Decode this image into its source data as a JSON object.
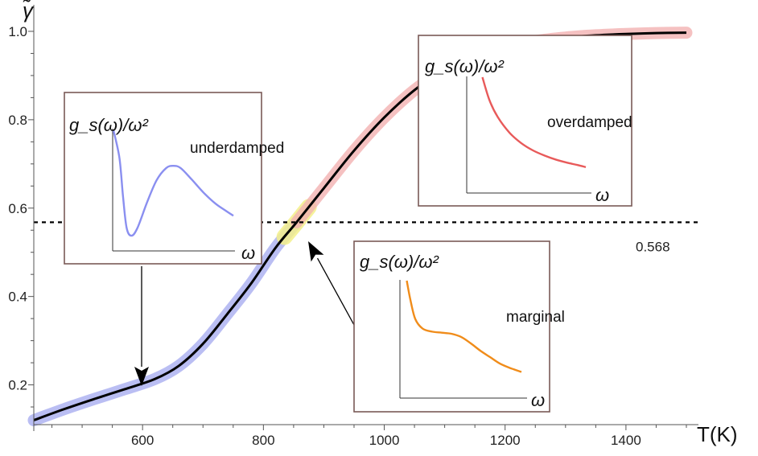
{
  "chart_data": {
    "type": "line",
    "xlabel": "T(K)",
    "ylabel": "γ̃",
    "xlim": [
      420,
      1520
    ],
    "ylim": [
      0.11,
      1.06
    ],
    "x_ticks": [
      600,
      800,
      1000,
      1200,
      1400
    ],
    "y_ticks": [
      0.2,
      0.4,
      0.6,
      0.8,
      1.0
    ],
    "y_tick_labels": [
      "0.2",
      "0.4",
      "0.6",
      "0.8",
      "1.0"
    ],
    "grid": false,
    "series": [
      {
        "x": [
          420,
          470,
          520,
          570,
          620,
          660,
          700,
          740,
          780,
          820,
          855,
          900,
          950,
          1000,
          1050,
          1100,
          1150,
          1200,
          1250,
          1300,
          1350,
          1400,
          1450,
          1500
        ],
        "y": [
          0.12,
          0.145,
          0.168,
          0.19,
          0.213,
          0.243,
          0.293,
          0.36,
          0.43,
          0.51,
          0.568,
          0.645,
          0.73,
          0.805,
          0.867,
          0.914,
          0.945,
          0.965,
          0.978,
          0.986,
          0.991,
          0.994,
          0.996,
          0.997
        ]
      }
    ],
    "regions": [
      {
        "label": "underdamped",
        "x_from": 420,
        "x_to": 855,
        "color": "#a9aef0"
      },
      {
        "label": "marginal",
        "x_from": 835,
        "x_to": 875,
        "color": "#f3f08a"
      },
      {
        "label": "overdamped",
        "x_from": 855,
        "x_to": 1500,
        "color": "#f3b1b1"
      }
    ],
    "threshold": {
      "y": 0.568,
      "label": "0.568"
    },
    "insets": [
      {
        "name": "underdamped",
        "ylabel": "g_s(ω)/ω²",
        "xlabel": "ω",
        "label": "underdamped",
        "color": "#8a8ff0",
        "points": [
          [
            0.0,
            1.0
          ],
          [
            0.05,
            0.75
          ],
          [
            0.08,
            0.4
          ],
          [
            0.11,
            0.12
          ],
          [
            0.15,
            0.05
          ],
          [
            0.2,
            0.12
          ],
          [
            0.28,
            0.35
          ],
          [
            0.36,
            0.55
          ],
          [
            0.44,
            0.66
          ],
          [
            0.5,
            0.68
          ],
          [
            0.56,
            0.66
          ],
          [
            0.65,
            0.56
          ],
          [
            0.75,
            0.44
          ],
          [
            0.85,
            0.34
          ],
          [
            0.93,
            0.28
          ],
          [
            1.0,
            0.23
          ]
        ]
      },
      {
        "name": "overdamped",
        "ylabel": "g_s(ω)/ω²",
        "xlabel": "ω",
        "label": "overdamped",
        "color": "#e85a5a",
        "points": [
          [
            0.12,
            1.0
          ],
          [
            0.18,
            0.78
          ],
          [
            0.25,
            0.62
          ],
          [
            0.35,
            0.47
          ],
          [
            0.45,
            0.37
          ],
          [
            0.55,
            0.3
          ],
          [
            0.65,
            0.25
          ],
          [
            0.75,
            0.21
          ],
          [
            0.85,
            0.18
          ],
          [
            0.93,
            0.16
          ],
          [
            1.0,
            0.14
          ]
        ]
      },
      {
        "name": "marginal",
        "ylabel": "g_s(ω)/ω²",
        "xlabel": "ω",
        "label": "marginal",
        "color": "#f08c1a",
        "points": [
          [
            0.05,
            1.0
          ],
          [
            0.08,
            0.82
          ],
          [
            0.12,
            0.64
          ],
          [
            0.18,
            0.55
          ],
          [
            0.26,
            0.52
          ],
          [
            0.34,
            0.51
          ],
          [
            0.42,
            0.5
          ],
          [
            0.5,
            0.47
          ],
          [
            0.58,
            0.41
          ],
          [
            0.66,
            0.34
          ],
          [
            0.74,
            0.28
          ],
          [
            0.82,
            0.22
          ],
          [
            0.9,
            0.18
          ],
          [
            1.0,
            0.14
          ]
        ]
      }
    ]
  }
}
